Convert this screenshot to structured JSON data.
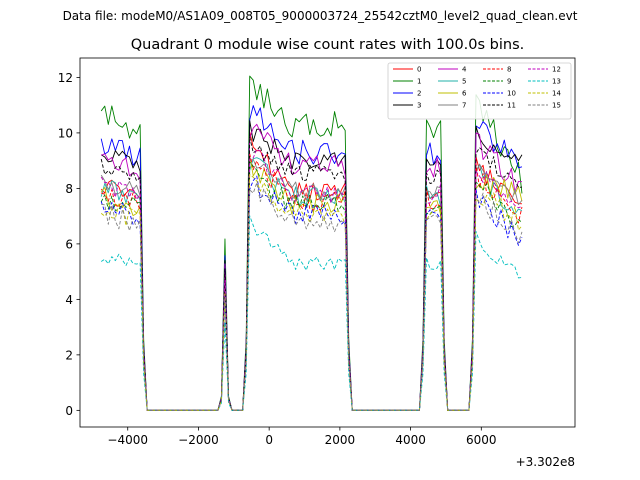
{
  "chart_data": {
    "type": "line",
    "suptitle": "Data file: modeM0/AS1A09_008T05_9000003724_25542cztM0_level2_quad_clean.evt",
    "title": "Quadrant 0 module wise count rates with 100.0s bins.",
    "xlabel": "",
    "ylabel": "",
    "x_offset_label": "+3.302e8",
    "xlim": [
      -5350,
      8650
    ],
    "ylim": [
      -0.6,
      12.7
    ],
    "xticks": [
      -4000,
      -2000,
      0,
      2000,
      4000,
      6000
    ],
    "xtick_labels": [
      "−4000",
      "−2000",
      "0",
      "2000",
      "4000",
      "6000"
    ],
    "yticks": [
      0,
      2,
      4,
      6,
      8,
      10,
      12
    ],
    "ytick_labels": [
      "0",
      "2",
      "4",
      "6",
      "8",
      "10",
      "12"
    ],
    "grid": false,
    "legend_position": "top-right",
    "segments": [
      {
        "start": -4750,
        "end": -3650
      },
      {
        "start": -550,
        "end": 2150
      },
      {
        "start": 4450,
        "end": 4850
      },
      {
        "start": 5850,
        "end": 7150
      }
    ],
    "spikes": [
      {
        "x": -1250,
        "frac": 0.6
      }
    ],
    "series": [
      {
        "name": "0",
        "color": "#ff0000",
        "dash": "solid",
        "level": 7.9,
        "noise": 0.35,
        "first_peak": 9.7,
        "last_end": 7.4
      },
      {
        "name": "1",
        "color": "#008000",
        "dash": "solid",
        "level": 10.3,
        "noise": 0.5,
        "first_peak": 11.8,
        "last_end": 8.3
      },
      {
        "name": "2",
        "color": "#0000ff",
        "dash": "solid",
        "level": 9.3,
        "noise": 0.45,
        "first_peak": 10.9,
        "last_end": 8.8
      },
      {
        "name": "3",
        "color": "#000000",
        "dash": "solid",
        "level": 9.0,
        "noise": 0.35,
        "first_peak": 10.1,
        "last_end": 8.9
      },
      {
        "name": "4",
        "color": "#bf00bf",
        "dash": "solid",
        "level": 8.8,
        "noise": 0.4,
        "first_peak": 10.2,
        "last_end": 8.0
      },
      {
        "name": "5",
        "color": "#20b2aa",
        "dash": "solid",
        "level": 7.7,
        "noise": 0.4,
        "first_peak": 9.0,
        "last_end": 7.0
      },
      {
        "name": "6",
        "color": "#bfbf00",
        "dash": "solid",
        "level": 7.4,
        "noise": 0.4,
        "first_peak": 8.8,
        "last_end": 7.8
      },
      {
        "name": "7",
        "color": "#808080",
        "dash": "solid",
        "level": 7.9,
        "noise": 0.35,
        "first_peak": 9.2,
        "last_end": 7.6
      },
      {
        "name": "8",
        "color": "#ff0000",
        "dash": "dashed",
        "level": 7.6,
        "noise": 0.4,
        "first_peak": 9.0,
        "last_end": 7.0
      },
      {
        "name": "9",
        "color": "#008000",
        "dash": "dashed",
        "level": 7.4,
        "noise": 0.4,
        "first_peak": 8.6,
        "last_end": 6.6
      },
      {
        "name": "10",
        "color": "#0000ff",
        "dash": "dashed",
        "level": 7.0,
        "noise": 0.45,
        "first_peak": 8.4,
        "last_end": 6.0
      },
      {
        "name": "11",
        "color": "#000000",
        "dash": "dashed",
        "level": 8.5,
        "noise": 0.35,
        "first_peak": 9.6,
        "last_end": 8.0
      },
      {
        "name": "12",
        "color": "#bf00bf",
        "dash": "dashed",
        "level": 7.8,
        "noise": 0.35,
        "first_peak": 9.4,
        "last_end": 7.1
      },
      {
        "name": "13",
        "color": "#00bfbf",
        "dash": "dashed",
        "level": 5.3,
        "noise": 0.25,
        "first_peak": 6.8,
        "last_end": 4.7
      },
      {
        "name": "14",
        "color": "#bfbf00",
        "dash": "dashed",
        "level": 7.0,
        "noise": 0.4,
        "first_peak": 8.3,
        "last_end": 6.8
      },
      {
        "name": "15",
        "color": "#808080",
        "dash": "dashed",
        "level": 6.8,
        "noise": 0.4,
        "first_peak": 8.1,
        "last_end": 6.3
      }
    ]
  }
}
